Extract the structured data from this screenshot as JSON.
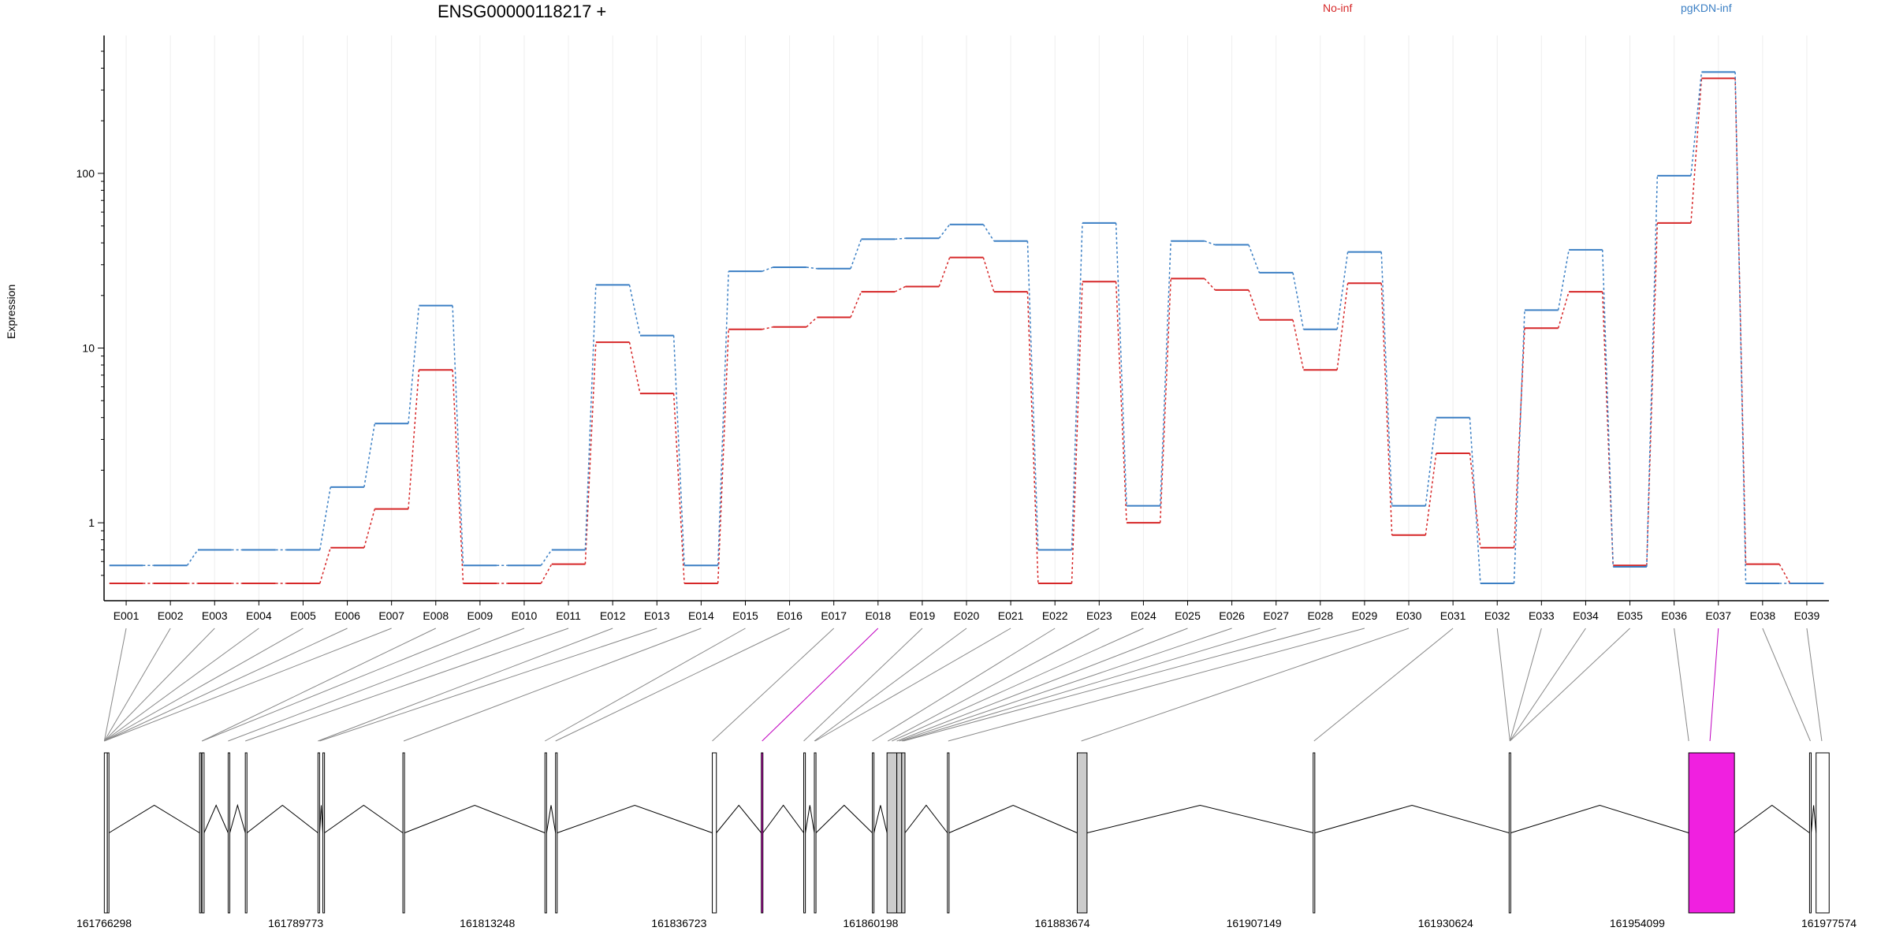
{
  "chart_data": {
    "type": "line",
    "title": "ENSG00000118217 +",
    "ylabel": "Expression",
    "yscale": "log",
    "ylim": [
      0.45,
      500
    ],
    "yticks": [
      1,
      10,
      100
    ],
    "ytick_labels": [
      "1",
      "10",
      "100"
    ],
    "legend_placement": "top-right",
    "grid": false,
    "categories": [
      "E001",
      "E002",
      "E003",
      "E004",
      "E005",
      "E006",
      "E007",
      "E008",
      "E009",
      "E010",
      "E011",
      "E012",
      "E013",
      "E014",
      "E015",
      "E016",
      "E017",
      "E018",
      "E019",
      "E020",
      "E021",
      "E022",
      "E023",
      "E024",
      "E025",
      "E026",
      "E027",
      "E028",
      "E029",
      "E030",
      "E031",
      "E032",
      "E033",
      "E034",
      "E035",
      "E036",
      "E037",
      "E038",
      "E039"
    ],
    "series": [
      {
        "name": "No-inf",
        "color": "#d62728",
        "values": [
          0.45,
          0.45,
          0.45,
          0.45,
          0.45,
          0.72,
          1.2,
          7.5,
          0.45,
          0.45,
          0.58,
          10.8,
          5.5,
          0.45,
          12.8,
          13.2,
          15.0,
          21.0,
          22.5,
          33.0,
          21.0,
          0.45,
          24.0,
          1.0,
          25.0,
          21.5,
          14.5,
          7.5,
          23.5,
          0.85,
          2.5,
          0.72,
          13.0,
          21.0,
          0.57,
          52.0,
          350.0,
          0.58,
          0.45
        ]
      },
      {
        "name": "pgKDN-inf",
        "color": "#3b7fc4",
        "values": [
          0.57,
          0.57,
          0.7,
          0.7,
          0.7,
          1.6,
          3.7,
          17.5,
          0.57,
          0.57,
          0.7,
          23.0,
          11.8,
          0.57,
          27.5,
          29.0,
          28.5,
          42.0,
          42.5,
          51.0,
          41.0,
          0.7,
          52.0,
          1.25,
          41.0,
          39.0,
          27.0,
          12.8,
          35.5,
          1.25,
          4.0,
          0.45,
          16.5,
          36.5,
          0.56,
          97.0,
          380.0,
          0.45,
          0.45
        ]
      }
    ],
    "genomic_axis": {
      "tick_labels": [
        "161766298",
        "161789773",
        "161813248",
        "161836723",
        "161860198",
        "161883674",
        "161907149",
        "161930624",
        "161954099",
        "161977574"
      ],
      "range": [
        161766298,
        161977574
      ],
      "exons": [
        {
          "start": 161766330,
          "end": 161766700,
          "fill": "none"
        },
        {
          "start": 161766700,
          "end": 161766900,
          "fill": "none"
        },
        {
          "start": 161778000,
          "end": 161778200,
          "fill": "none"
        },
        {
          "start": 161778300,
          "end": 161778550,
          "fill": "none"
        },
        {
          "start": 161781500,
          "end": 161781700,
          "fill": "none"
        },
        {
          "start": 161783600,
          "end": 161783800,
          "fill": "none"
        },
        {
          "start": 161792500,
          "end": 161792700,
          "fill": "none"
        },
        {
          "start": 161793100,
          "end": 161793300,
          "fill": "none"
        },
        {
          "start": 161802900,
          "end": 161803100,
          "fill": "none"
        },
        {
          "start": 161820300,
          "end": 161820500,
          "fill": "none"
        },
        {
          "start": 161821600,
          "end": 161821800,
          "fill": "none"
        },
        {
          "start": 161840800,
          "end": 161841300,
          "fill": "none"
        },
        {
          "start": 161846800,
          "end": 161847000,
          "fill": "#f020e0"
        },
        {
          "start": 161852000,
          "end": 161852200,
          "fill": "none"
        },
        {
          "start": 161853300,
          "end": 161853500,
          "fill": "none"
        },
        {
          "start": 161860400,
          "end": 161860600,
          "fill": "none"
        },
        {
          "start": 161862200,
          "end": 161863400,
          "fill": "#cccccc"
        },
        {
          "start": 161863400,
          "end": 161864000,
          "fill": "#cccccc"
        },
        {
          "start": 161864000,
          "end": 161864400,
          "fill": "#cccccc"
        },
        {
          "start": 161869600,
          "end": 161869800,
          "fill": "none"
        },
        {
          "start": 161885500,
          "end": 161886700,
          "fill": "#cccccc"
        },
        {
          "start": 161914400,
          "end": 161914600,
          "fill": "none"
        },
        {
          "start": 161938400,
          "end": 161938600,
          "fill": "none"
        },
        {
          "start": 161960400,
          "end": 161966000,
          "fill": "#f020e0"
        },
        {
          "start": 161975200,
          "end": 161975400,
          "fill": "none"
        },
        {
          "start": 161976000,
          "end": 161977600,
          "fill": "none"
        }
      ]
    }
  }
}
